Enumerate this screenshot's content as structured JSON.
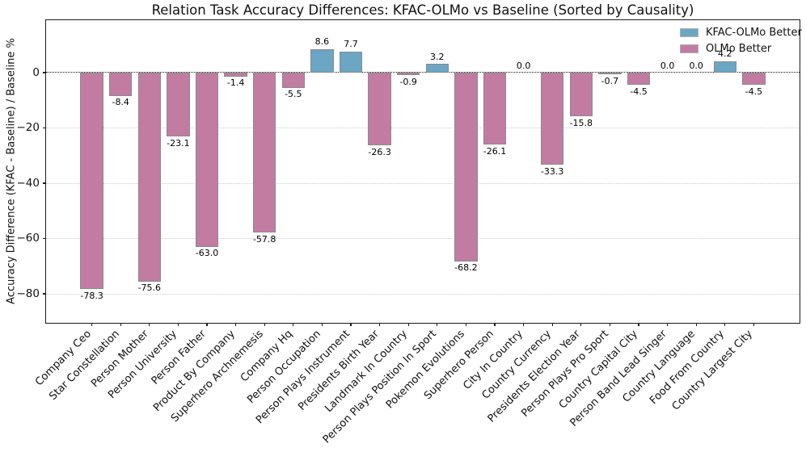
{
  "chart_data": {
    "type": "bar",
    "title": "Relation Task Accuracy Differences: KFAC-OLMo vs Baseline (Sorted by Causality)",
    "xlabel": "",
    "ylabel": "Accuracy Difference (KFAC - Baseline) / Baseline %",
    "categories": [
      "Company Ceo",
      "Star Constellation",
      "Person Mother",
      "Person University",
      "Person Father",
      "Product By Company",
      "Superhero Archnemesis",
      "Company Hq",
      "Person Occupation",
      "Person Plays Instrument",
      "Presidents Birth Year",
      "Landmark In Country",
      "Person Plays Position In Sport",
      "Pokemon Evolutions",
      "Superhero Person",
      "City In Country",
      "Country Currency",
      "Presidents Election Year",
      "Person Plays Pro Sport",
      "Country Capital City",
      "Person Band Lead Singer",
      "Country Language",
      "Food From Country",
      "Country Largest City"
    ],
    "values": [
      -78.3,
      -8.4,
      -75.6,
      -23.1,
      -63.0,
      -1.4,
      -57.8,
      -5.5,
      8.6,
      7.7,
      -26.3,
      -0.9,
      3.2,
      -68.2,
      -26.1,
      0.0,
      -33.3,
      -15.8,
      -0.7,
      -4.5,
      0.0,
      0.0,
      4.2,
      -4.5
    ],
    "value_labels_shown": true,
    "yticks": [
      0,
      -20,
      -40,
      -60,
      -80
    ],
    "ylim": [
      -90.5,
      19
    ],
    "grid": "horizontal dotted light",
    "zero_line": "black dotted",
    "legend_position": "upper right",
    "legend": [
      {
        "label": "KFAC-OLMo Better",
        "color": "#6BA6C4"
      },
      {
        "label": "OLMo Better",
        "color": "#C27CA2"
      }
    ],
    "colors": {
      "positive_bar": "#6BA6C4",
      "negative_bar": "#C27CA2",
      "bar_edge": "#8a8a8a",
      "grid": "#cccccc",
      "axis": "#1a1a1a",
      "background": "#ffffff"
    }
  }
}
